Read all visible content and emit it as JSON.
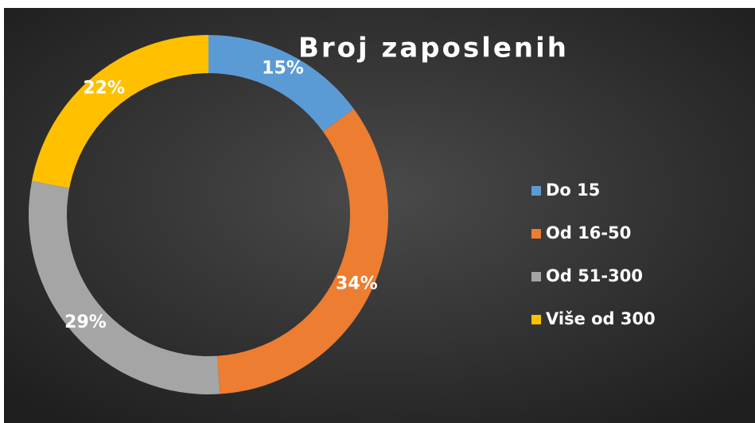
{
  "chart_data": {
    "type": "donut",
    "title": "Broj zaposlenih",
    "categories": [
      "Do 15",
      "Od 16-50",
      "Od 51-300",
      "Više od 300"
    ],
    "values": [
      15,
      34,
      29,
      22
    ],
    "value_labels": [
      "15%",
      "34%",
      "29%",
      "22%"
    ],
    "colors": [
      "#5b9bd5",
      "#ed7d31",
      "#a5a5a5",
      "#ffc000"
    ],
    "legend": "right"
  }
}
